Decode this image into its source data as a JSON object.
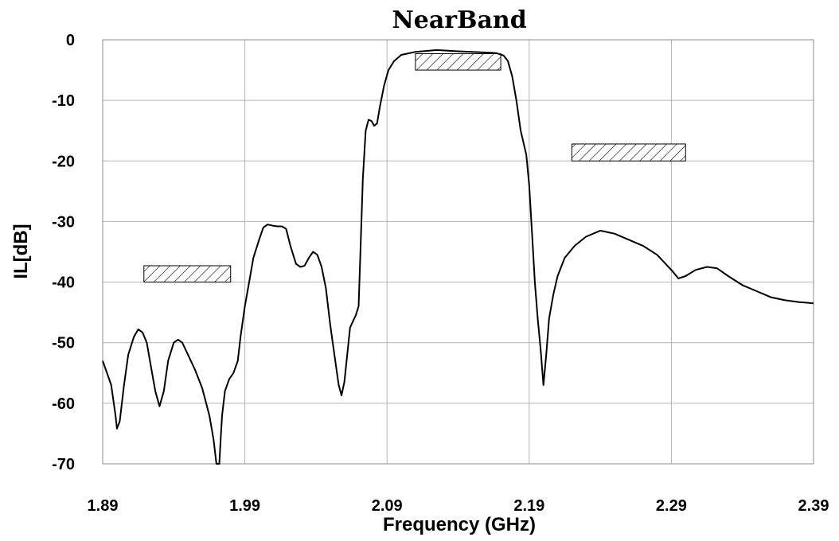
{
  "chart_data": {
    "type": "line",
    "title": "NearBand",
    "xlabel": "Frequency (GHz)",
    "ylabel": "IL[dB]",
    "xlim": [
      1.89,
      2.39
    ],
    "ylim": [
      -70,
      0
    ],
    "x_ticks": [
      "1.89",
      "1.99",
      "2.09",
      "2.19",
      "2.29",
      "2.39"
    ],
    "y_ticks": [
      "0",
      "-10",
      "-20",
      "-30",
      "-40",
      "-50",
      "-60",
      "-70"
    ],
    "grid": true,
    "legend": "none",
    "series": [
      {
        "color": "#000000",
        "points": [
          [
            1.89,
            -53.0
          ],
          [
            1.893,
            -55.0
          ],
          [
            1.896,
            -57.0
          ],
          [
            1.899,
            -62.0
          ],
          [
            1.9,
            -64.2
          ],
          [
            1.902,
            -63.0
          ],
          [
            1.905,
            -57.0
          ],
          [
            1.908,
            -52.0
          ],
          [
            1.912,
            -49.0
          ],
          [
            1.915,
            -47.8
          ],
          [
            1.918,
            -48.3
          ],
          [
            1.921,
            -50.0
          ],
          [
            1.924,
            -54.0
          ],
          [
            1.927,
            -58.0
          ],
          [
            1.93,
            -60.5
          ],
          [
            1.933,
            -58.0
          ],
          [
            1.936,
            -53.0
          ],
          [
            1.94,
            -50.0
          ],
          [
            1.943,
            -49.5
          ],
          [
            1.946,
            -50.0
          ],
          [
            1.95,
            -52.0
          ],
          [
            1.955,
            -54.5
          ],
          [
            1.96,
            -57.5
          ],
          [
            1.965,
            -62.0
          ],
          [
            1.968,
            -66.0
          ],
          [
            1.97,
            -70.0
          ],
          [
            1.972,
            -70.0
          ],
          [
            1.973,
            -66.0
          ],
          [
            1.974,
            -62.0
          ],
          [
            1.976,
            -58.0
          ],
          [
            1.979,
            -56.0
          ],
          [
            1.982,
            -55.0
          ],
          [
            1.985,
            -53.0
          ],
          [
            1.987,
            -49.0
          ],
          [
            1.99,
            -44.0
          ],
          [
            1.993,
            -40.0
          ],
          [
            1.996,
            -36.0
          ],
          [
            2.0,
            -33.0
          ],
          [
            2.003,
            -31.0
          ],
          [
            2.006,
            -30.5
          ],
          [
            2.01,
            -30.7
          ],
          [
            2.013,
            -30.8
          ],
          [
            2.016,
            -30.8
          ],
          [
            2.019,
            -31.2
          ],
          [
            2.022,
            -34.0
          ],
          [
            2.026,
            -37.0
          ],
          [
            2.029,
            -37.5
          ],
          [
            2.032,
            -37.3
          ],
          [
            2.035,
            -36.0
          ],
          [
            2.038,
            -35.0
          ],
          [
            2.041,
            -35.5
          ],
          [
            2.044,
            -37.5
          ],
          [
            2.047,
            -41.0
          ],
          [
            2.05,
            -47.0
          ],
          [
            2.053,
            -52.0
          ],
          [
            2.056,
            -57.0
          ],
          [
            2.058,
            -58.7
          ],
          [
            2.06,
            -56.5
          ],
          [
            2.062,
            -52.0
          ],
          [
            2.064,
            -47.5
          ],
          [
            2.066,
            -46.5
          ],
          [
            2.068,
            -45.5
          ],
          [
            2.07,
            -44.0
          ],
          [
            2.071,
            -37.0
          ],
          [
            2.073,
            -23.0
          ],
          [
            2.075,
            -15.0
          ],
          [
            2.077,
            -13.2
          ],
          [
            2.079,
            -13.4
          ],
          [
            2.081,
            -14.2
          ],
          [
            2.083,
            -13.8
          ],
          [
            2.085,
            -11.0
          ],
          [
            2.088,
            -7.5
          ],
          [
            2.091,
            -5.0
          ],
          [
            2.095,
            -3.5
          ],
          [
            2.1,
            -2.5
          ],
          [
            2.11,
            -2.0
          ],
          [
            2.125,
            -1.7
          ],
          [
            2.14,
            -1.9
          ],
          [
            2.15,
            -2.0
          ],
          [
            2.16,
            -2.1
          ],
          [
            2.167,
            -2.2
          ],
          [
            2.172,
            -2.6
          ],
          [
            2.175,
            -3.5
          ],
          [
            2.178,
            -6.0
          ],
          [
            2.181,
            -10.0
          ],
          [
            2.184,
            -15.0
          ],
          [
            2.188,
            -19.0
          ],
          [
            2.19,
            -24.0
          ],
          [
            2.192,
            -32.0
          ],
          [
            2.194,
            -40.0
          ],
          [
            2.196,
            -46.0
          ],
          [
            2.198,
            -51.0
          ],
          [
            2.2,
            -57.0
          ],
          [
            2.202,
            -52.0
          ],
          [
            2.204,
            -46.0
          ],
          [
            2.207,
            -42.0
          ],
          [
            2.21,
            -39.0
          ],
          [
            2.215,
            -36.0
          ],
          [
            2.222,
            -34.0
          ],
          [
            2.23,
            -32.5
          ],
          [
            2.24,
            -31.5
          ],
          [
            2.25,
            -32.0
          ],
          [
            2.26,
            -33.0
          ],
          [
            2.27,
            -34.0
          ],
          [
            2.28,
            -35.5
          ],
          [
            2.29,
            -38.0
          ],
          [
            2.295,
            -39.4
          ],
          [
            2.3,
            -39.0
          ],
          [
            2.307,
            -38.0
          ],
          [
            2.315,
            -37.5
          ],
          [
            2.322,
            -37.7
          ],
          [
            2.33,
            -39.0
          ],
          [
            2.34,
            -40.5
          ],
          [
            2.35,
            -41.5
          ],
          [
            2.36,
            -42.5
          ],
          [
            2.37,
            -43.0
          ],
          [
            2.38,
            -43.3
          ],
          [
            2.39,
            -43.5
          ]
        ]
      }
    ],
    "spec_boxes": [
      {
        "x": [
          1.919,
          1.98
        ],
        "y": [
          -40,
          -37.3
        ]
      },
      {
        "x": [
          2.11,
          2.17
        ],
        "y": [
          -5,
          -2.3
        ]
      },
      {
        "x": [
          2.22,
          2.3
        ],
        "y": [
          -20,
          -17.2
        ]
      }
    ]
  }
}
